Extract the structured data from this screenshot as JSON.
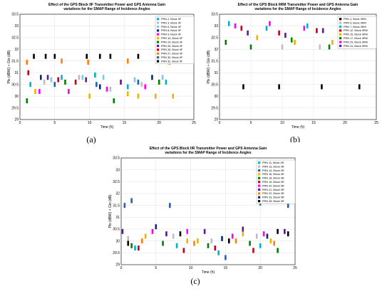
{
  "captions": [
    "(a)",
    "(b)",
    "(c)"
  ],
  "chart_data": [
    {
      "type": "scatter",
      "title_lines": [
        "Effect of the GPS Block IIF Transmitter Power and GPS Antenna Gain",
        "variations for the SMAP Range of Incidence Angles"
      ],
      "title": "Effect of the GPS Block IIF Transmitter Power and GPS Antenna Gain variations for the SMAP Range of Incidence Angles",
      "xlabel": "Time (h)",
      "ylabel": "Ptx (dBW) + Gtx (dB)",
      "xlim": [
        0,
        25
      ],
      "ylim": [
        29,
        33.5
      ],
      "xticks": [
        0,
        5,
        10,
        15,
        20,
        25
      ],
      "yticks": [
        29,
        29.5,
        30,
        30.5,
        31,
        31.5,
        32,
        32.5,
        33,
        33.5
      ],
      "grid": true,
      "legend_position": "top-right",
      "series": [
        {
          "name": "PRN 2, Block IIF",
          "color": "#00b4c8",
          "points": [
            [
              1.5,
              30.5
            ],
            [
              6.0,
              30.8
            ],
            [
              10.8,
              30.9
            ],
            [
              15.5,
              30.4
            ],
            [
              21.0,
              30.6
            ]
          ]
        },
        {
          "name": "PRN 3, Block IIF",
          "color": "#bdbdbd",
          "points": [
            [
              3.5,
              30.6
            ],
            [
              8.5,
              30.8
            ],
            [
              13.0,
              30.3
            ],
            [
              17.5,
              30.5
            ]
          ]
        },
        {
          "name": "PRN 6, Block IIF",
          "color": "#7ec8e3",
          "points": [
            [
              4.5,
              30.7
            ],
            [
              9.0,
              30.8
            ],
            [
              12.0,
              30.8
            ],
            [
              16.5,
              30.7
            ],
            [
              20.5,
              30.8
            ]
          ]
        },
        {
          "name": "PRN 8, Block IIF",
          "color": "#0b2a6b",
          "points": [
            [
              3.0,
              30.8
            ],
            [
              11.5,
              30.4
            ],
            [
              19.0,
              30.8
            ]
          ]
        },
        {
          "name": "PRN 9, Block IIF",
          "color": "#ff00ff",
          "points": [
            [
              2.8,
              30.2
            ],
            [
              7.0,
              30.2
            ],
            [
              12.5,
              30.3
            ],
            [
              18.0,
              30.4
            ]
          ]
        },
        {
          "name": "PRN 10, Block IIF",
          "color": "#f0b400",
          "points": [
            [
              2.2,
              30.2
            ],
            [
              10.0,
              30.0
            ],
            [
              15.5,
              30.1
            ],
            [
              22.0,
              30.0
            ],
            [
              17.0,
              30.0
            ],
            [
              19.5,
              30.0
            ]
          ]
        },
        {
          "name": "PRN 24, Block IIF",
          "color": "#008000",
          "points": [
            [
              1.0,
              29.8
            ],
            [
              6.5,
              30.6
            ],
            [
              13.5,
              29.8
            ],
            [
              20.0,
              30.6
            ]
          ]
        },
        {
          "name": "PRN 25, Block IIF",
          "color": "#5c1a8a",
          "points": [
            [
              4.0,
              30.8
            ],
            [
              9.5,
              30.7
            ],
            [
              14.5,
              30.6
            ]
          ]
        },
        {
          "name": "PRN 26, Block IIF",
          "color": "#c0001a",
          "points": [
            [
              1.2,
              31.0
            ],
            [
              5.5,
              30.7
            ],
            [
              8.0,
              30.6
            ]
          ]
        },
        {
          "name": "PRN 27, Block IIF",
          "color": "#ff7f0e",
          "points": [
            [
              1.0,
              31.45
            ],
            [
              6.0,
              31.5
            ],
            [
              9.8,
              31.45
            ],
            [
              15.5,
              31.5
            ],
            [
              21.5,
              31.45
            ]
          ]
        },
        {
          "name": "PRN 30, Block IIF",
          "color": "#1f5fbf",
          "points": [
            [
              5.0,
              30.5
            ],
            [
              11.0,
              30.5
            ],
            [
              17.0,
              30.6
            ]
          ]
        },
        {
          "name": "PRN 32, Block IIF",
          "color": "#000000",
          "points": [
            [
              2.0,
              31.7
            ],
            [
              3.7,
              31.7
            ],
            [
              5.0,
              31.7
            ],
            [
              9.6,
              31.7
            ],
            [
              11.5,
              31.7
            ],
            [
              13.0,
              31.7
            ],
            [
              17.0,
              31.7
            ],
            [
              22.5,
              31.7
            ]
          ]
        }
      ]
    },
    {
      "type": "scatter",
      "title_lines": [
        "Effect of the GPS Block IIRM Transmitter Power and GPS Antenna Gain",
        "variations for the SMAP Range of Incidence Angles"
      ],
      "title": "Effect of the GPS Block IIRM Transmitter Power and GPS Antenna Gain variations for the SMAP Range of Incidence Angles",
      "xlabel": "Time (h)",
      "ylabel": "Ptx (dBW) + Gtx (dB)",
      "xlim": [
        0,
        25
      ],
      "ylim": [
        29,
        33.5
      ],
      "xticks": [
        0,
        5,
        10,
        15,
        20,
        25
      ],
      "yticks": [
        29,
        29.5,
        30,
        30.5,
        31,
        31.5,
        32,
        32.5,
        33,
        33.5
      ],
      "grid": true,
      "legend_position": "top-right",
      "series": [
        {
          "name": "PRN 1, Block IIRM",
          "color": "#000000",
          "points": [
            [
              3.8,
              30.4
            ],
            [
              9.5,
              30.4
            ],
            [
              16.3,
              30.4
            ],
            [
              22.3,
              30.4
            ]
          ]
        },
        {
          "name": "PRN 5, Block IIRM",
          "color": "#bdbdbd",
          "points": [
            [
              10.0,
              32.1
            ],
            [
              16.0,
              32.1
            ],
            [
              22.0,
              32.2
            ]
          ]
        },
        {
          "name": "PRN 7, Block IIRM",
          "color": "#00b4c8",
          "points": [
            [
              1.5,
              33.1
            ],
            [
              7.5,
              32.9
            ],
            [
              14.0,
              33.0
            ],
            [
              20.0,
              33.1
            ]
          ]
        },
        {
          "name": "PRN 12, Block IIRM",
          "color": "#c0001a",
          "points": [
            [
              3.5,
              32.9
            ],
            [
              9.5,
              32.7
            ],
            [
              15.5,
              32.8
            ],
            [
              21.5,
              32.9
            ]
          ]
        },
        {
          "name": "PRN 15, Block IIRM",
          "color": "#f0b400",
          "points": [
            [
              6.0,
              32.5
            ],
            [
              12.0,
              32.3
            ],
            [
              18.0,
              32.3
            ]
          ]
        },
        {
          "name": "PRN 17, Block IIRM",
          "color": "#008000",
          "points": [
            [
              1.0,
              32.3
            ],
            [
              5.0,
              32.1
            ],
            [
              11.5,
              32.4
            ],
            [
              17.5,
              32.1
            ],
            [
              23.0,
              32.2
            ]
          ]
        },
        {
          "name": "PRN 29, Block IIRM",
          "color": "#ff00ff",
          "points": [
            [
              2.5,
              33.0
            ],
            [
              8.0,
              33.1
            ],
            [
              13.5,
              32.9
            ],
            [
              19.5,
              33.0
            ]
          ]
        },
        {
          "name": "PRN 31, Block IIRM",
          "color": "#5c1a8a",
          "points": [
            [
              4.5,
              32.7
            ],
            [
              10.5,
              32.6
            ],
            [
              16.5,
              32.8
            ],
            [
              22.5,
              32.6
            ]
          ]
        }
      ]
    },
    {
      "type": "scatter",
      "title_lines": [
        "Effect of the GPS Block IIR Transmitter Power and GPS Antenna Gain",
        "variations for the SMAP Range of Incidence Angles"
      ],
      "title": "Effect of the GPS Block IIR Transmitter Power and GPS Antenna Gain variations for the SMAP Range of Incidence Angles",
      "xlabel": "Time (h)",
      "ylabel": "Ptx (dBW) + Gtx (dB)",
      "xlim": [
        0,
        25
      ],
      "ylim": [
        29,
        33.5
      ],
      "xticks": [
        0,
        5,
        10,
        15,
        20,
        25
      ],
      "yticks": [
        29,
        29.5,
        30,
        30.5,
        31,
        31.5,
        32,
        32.5,
        33,
        33.5
      ],
      "grid": true,
      "legend_position": "top-right",
      "series": [
        {
          "name": "PRN 11, Block IIR",
          "color": "#00b4c8",
          "points": [
            [
              2.0,
              29.7
            ],
            [
              8.0,
              29.8
            ],
            [
              14.0,
              29.5
            ],
            [
              20.0,
              29.8
            ]
          ]
        },
        {
          "name": "PRN 13, Block IIR",
          "color": "#bdbdbd",
          "points": [
            [
              1.0,
              30.1
            ],
            [
              7.5,
              30.2
            ],
            [
              13.0,
              30.0
            ],
            [
              19.5,
              30.2
            ]
          ]
        },
        {
          "name": "PRN 14, Block IIR",
          "color": "#1f5fbf",
          "points": [
            [
              0.5,
              31.5
            ],
            [
              1.5,
              31.7
            ],
            [
              7.0,
              31.5
            ],
            [
              15.0,
              29.3
            ],
            [
              20.0,
              31.6
            ],
            [
              24.0,
              31.5
            ]
          ]
        },
        {
          "name": "PRN 16, Block IIR",
          "color": "#f0b400",
          "points": [
            [
              3.5,
              30.2
            ],
            [
              9.5,
              30.0
            ],
            [
              11.0,
              30.0
            ],
            [
              17.5,
              30.3
            ],
            [
              21.5,
              30.0
            ]
          ]
        },
        {
          "name": "PRN 18, Block IIR",
          "color": "#008000",
          "points": [
            [
              1.5,
              29.8
            ],
            [
              6.0,
              29.9
            ],
            [
              12.5,
              29.8
            ],
            [
              18.5,
              29.9
            ],
            [
              22.5,
              29.6
            ]
          ]
        },
        {
          "name": "PRN 19, Block IIR",
          "color": "#c0001a",
          "points": [
            [
              2.5,
              29.7
            ],
            [
              9.0,
              29.6
            ],
            [
              13.5,
              29.7
            ],
            [
              19.0,
              29.6
            ]
          ]
        },
        {
          "name": "PRN 20, Block IIR",
          "color": "#ff00ff",
          "points": [
            [
              4.5,
              30.4
            ],
            [
              9.5,
              30.4
            ],
            [
              16.0,
              30.2
            ],
            [
              20.5,
              30.3
            ]
          ]
        },
        {
          "name": "PRN 21, Block IIR",
          "color": "#5c1a8a",
          "points": [
            [
              0.2,
              30.4
            ],
            [
              6.5,
              30.3
            ],
            [
              12.0,
              30.4
            ],
            [
              17.5,
              30.5
            ],
            [
              23.5,
              30.4
            ]
          ]
        },
        {
          "name": "PRN 22, Block IIR",
          "color": "#ff7f0e",
          "points": [
            [
              3.0,
              30.0
            ],
            [
              10.5,
              29.9
            ],
            [
              16.5,
              30.0
            ],
            [
              22.0,
              29.9
            ]
          ]
        },
        {
          "name": "PRN 23, Block IIR",
          "color": "#0b2a6b",
          "points": [
            [
              5.0,
              30.6
            ],
            [
              14.5,
              30.1
            ],
            [
              21.0,
              30.2
            ]
          ]
        },
        {
          "name": "PRN 28, Block IIR",
          "color": "#000000",
          "points": [
            [
              1.0,
              29.9
            ],
            [
              8.5,
              30.3
            ],
            [
              15.5,
              30.0
            ],
            [
              22.5,
              30.4
            ],
            [
              24.0,
              30.3
            ]
          ]
        }
      ]
    }
  ]
}
